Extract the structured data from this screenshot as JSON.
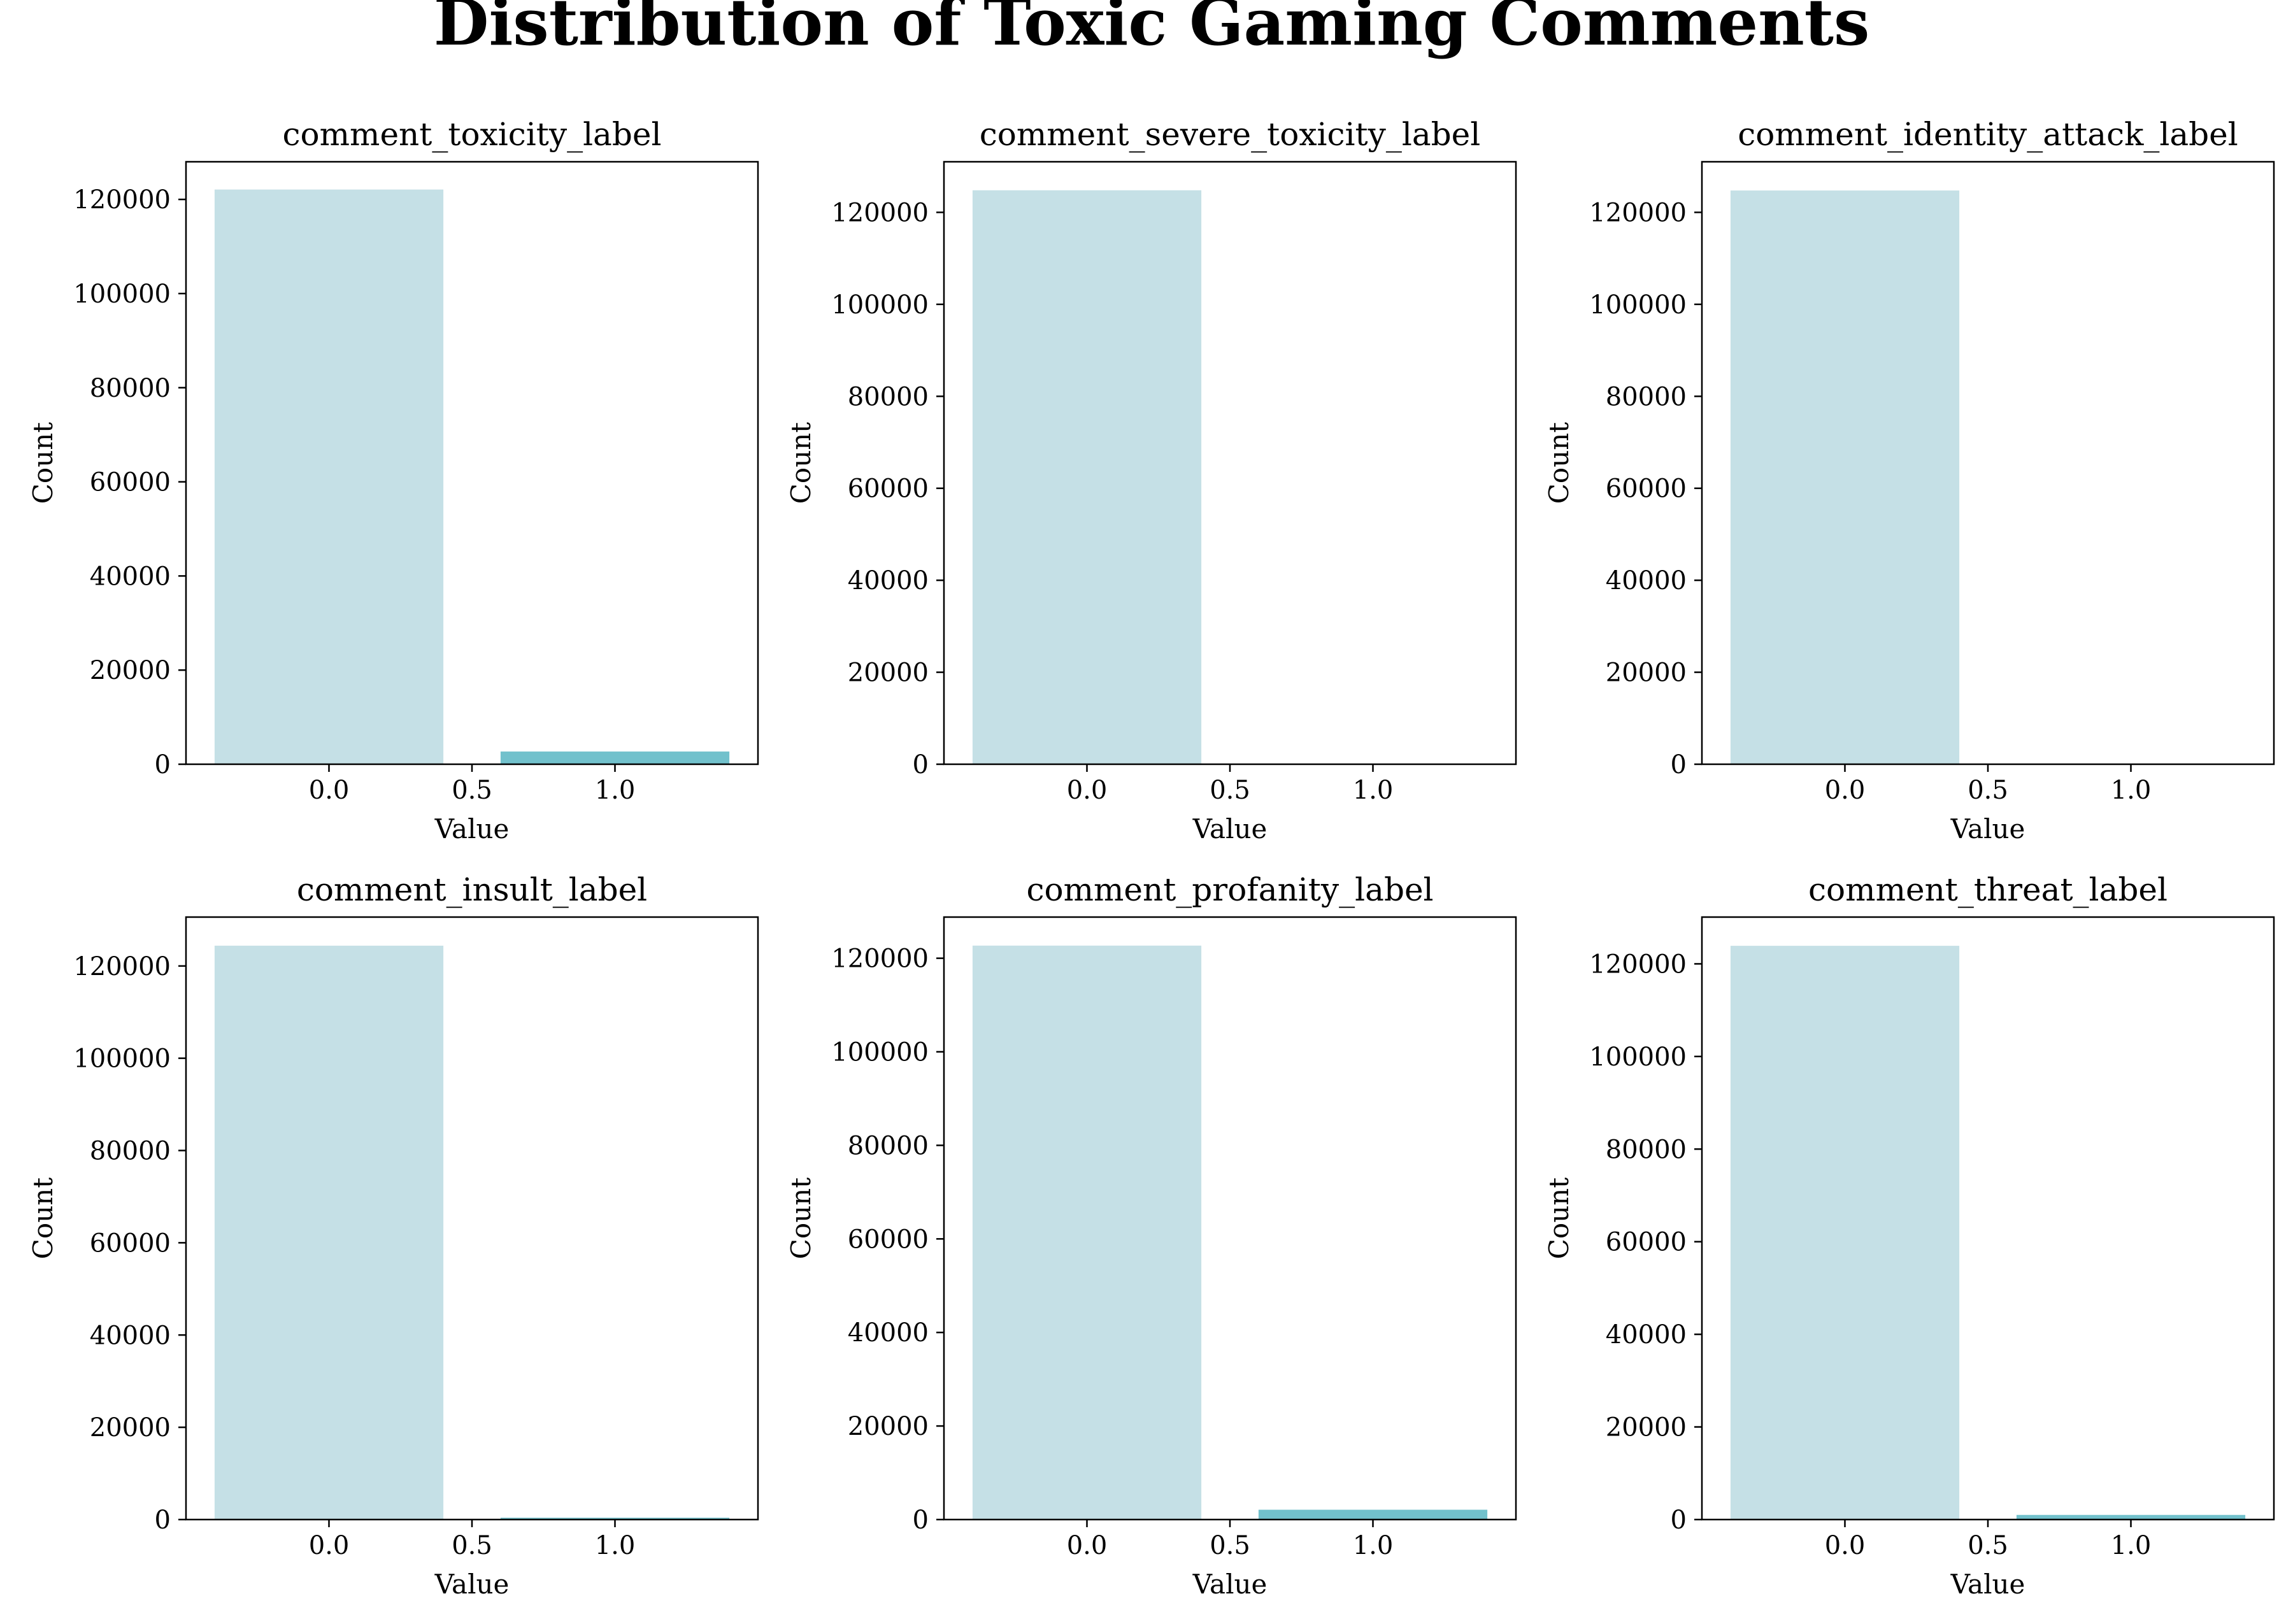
{
  "title": "Distribution of Toxic Gaming Comments",
  "colors": {
    "bar_zero": "#c5e0e6",
    "bar_one": "#72c1cc",
    "axis": "#000000"
  },
  "chart_data": [
    {
      "type": "bar",
      "title": "comment_toxicity_label",
      "xlabel": "Value",
      "ylabel": "Count",
      "categories": [
        "0.0",
        "1.0"
      ],
      "x": [
        0,
        1
      ],
      "values": [
        122100,
        2700
      ],
      "xlim": [
        -0.5,
        1.5
      ],
      "ylim": [
        0,
        128000
      ],
      "xticks": [
        "0.0",
        "0.5",
        "1.0"
      ],
      "yticks": [
        "0",
        "20000",
        "40000",
        "60000",
        "80000",
        "100000",
        "120000"
      ]
    },
    {
      "type": "bar",
      "title": "comment_severe_toxicity_label",
      "xlabel": "Value",
      "ylabel": "Count",
      "categories": [
        "0.0",
        "1.0"
      ],
      "x": [
        0,
        1
      ],
      "values": [
        124800,
        30
      ],
      "xlim": [
        -0.5,
        1.5
      ],
      "ylim": [
        0,
        131000
      ],
      "xticks": [
        "0.0",
        "0.5",
        "1.0"
      ],
      "yticks": [
        "0",
        "20000",
        "40000",
        "60000",
        "80000",
        "100000",
        "120000"
      ]
    },
    {
      "type": "bar",
      "title": "comment_identity_attack_label",
      "xlabel": "Value",
      "ylabel": "Count",
      "categories": [
        "0.0",
        "1.0"
      ],
      "x": [
        0,
        1
      ],
      "values": [
        124750,
        80
      ],
      "xlim": [
        -0.5,
        1.5
      ],
      "ylim": [
        0,
        131000
      ],
      "xticks": [
        "0.0",
        "0.5",
        "1.0"
      ],
      "yticks": [
        "0",
        "20000",
        "40000",
        "60000",
        "80000",
        "100000",
        "120000"
      ]
    },
    {
      "type": "bar",
      "title": "comment_insult_label",
      "xlabel": "Value",
      "ylabel": "Count",
      "categories": [
        "0.0",
        "1.0"
      ],
      "x": [
        0,
        1
      ],
      "values": [
        124400,
        400
      ],
      "xlim": [
        -0.5,
        1.5
      ],
      "ylim": [
        0,
        130600
      ],
      "xticks": [
        "0.0",
        "0.5",
        "1.0"
      ],
      "yticks": [
        "0",
        "20000",
        "40000",
        "60000",
        "80000",
        "100000",
        "120000"
      ]
    },
    {
      "type": "bar",
      "title": "comment_profanity_label",
      "xlabel": "Value",
      "ylabel": "Count",
      "categories": [
        "0.0",
        "1.0"
      ],
      "x": [
        0,
        1
      ],
      "values": [
        122700,
        2100
      ],
      "xlim": [
        -0.5,
        1.5
      ],
      "ylim": [
        0,
        128800
      ],
      "xticks": [
        "0.0",
        "0.5",
        "1.0"
      ],
      "yticks": [
        "0",
        "20000",
        "40000",
        "60000",
        "80000",
        "100000",
        "120000"
      ]
    },
    {
      "type": "bar",
      "title": "comment_threat_label",
      "xlabel": "Value",
      "ylabel": "Count",
      "categories": [
        "0.0",
        "1.0"
      ],
      "x": [
        0,
        1
      ],
      "values": [
        123900,
        1000
      ],
      "xlim": [
        -0.5,
        1.5
      ],
      "ylim": [
        0,
        130100
      ],
      "xticks": [
        "0.0",
        "0.5",
        "1.0"
      ],
      "yticks": [
        "0",
        "20000",
        "40000",
        "60000",
        "80000",
        "100000",
        "120000"
      ]
    }
  ]
}
